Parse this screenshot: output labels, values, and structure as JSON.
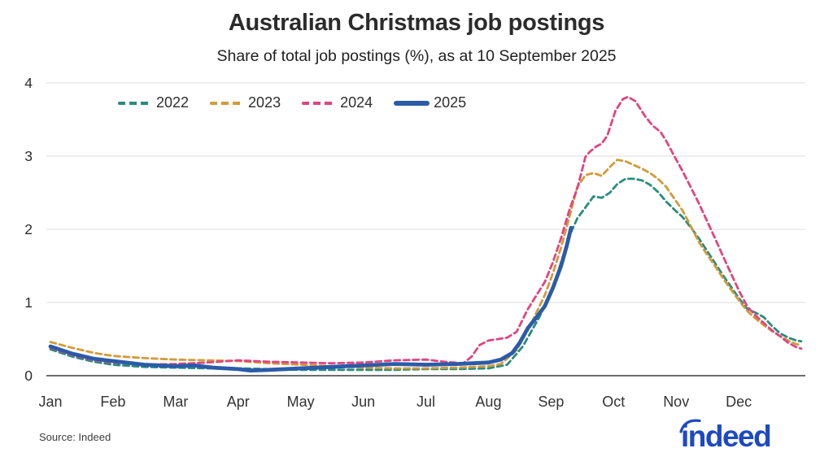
{
  "chart": {
    "title": "Australian Christmas job postings",
    "subtitle": "Share of total job postings (%), as at 10 September 2025",
    "source": "Source: Indeed"
  },
  "brand": {
    "logo_text": "indeed",
    "logo_color": "#1e49c0"
  },
  "chart_data": {
    "type": "line",
    "title": "Australian Christmas job postings",
    "subtitle": "Share of total job postings (%), as at 10 September 2025",
    "xlabel": "",
    "ylabel": "Share of total job postings (%)",
    "x_unit": "months, Jan 1 = 0 to Dec 31 = 12",
    "x_tick_labels": [
      "Jan",
      "Feb",
      "Mar",
      "Apr",
      "May",
      "Jun",
      "Jul",
      "Aug",
      "Sep",
      "Oct",
      "Nov",
      "Dec"
    ],
    "ylim": [
      0,
      4
    ],
    "y_ticks": [
      0,
      1,
      2,
      3,
      4
    ],
    "grid": "horizontal",
    "legend_position": "top-left",
    "axis_colors": {
      "gridline": "#e4e4e4",
      "baseline": "#5a5a5a",
      "tick_text": "#333333"
    },
    "series": [
      {
        "name": "2022",
        "color": "#2a8c7c",
        "style": "dashed",
        "width": 2.8,
        "points": [
          [
            0,
            0.36
          ],
          [
            0.35,
            0.26
          ],
          [
            0.7,
            0.19
          ],
          [
            1,
            0.15
          ],
          [
            1.5,
            0.12
          ],
          [
            2,
            0.11
          ],
          [
            2.5,
            0.1
          ],
          [
            3,
            0.1
          ],
          [
            3.5,
            0.09
          ],
          [
            4,
            0.08
          ],
          [
            4.5,
            0.08
          ],
          [
            5,
            0.08
          ],
          [
            5.5,
            0.08
          ],
          [
            6,
            0.09
          ],
          [
            6.5,
            0.09
          ],
          [
            7,
            0.1
          ],
          [
            7.3,
            0.15
          ],
          [
            7.55,
            0.4
          ],
          [
            7.8,
            0.78
          ],
          [
            8.03,
            1.18
          ],
          [
            8.16,
            1.55
          ],
          [
            8.3,
            1.92
          ],
          [
            8.42,
            2.15
          ],
          [
            8.55,
            2.3
          ],
          [
            8.68,
            2.45
          ],
          [
            8.81,
            2.43
          ],
          [
            8.94,
            2.5
          ],
          [
            9.06,
            2.62
          ],
          [
            9.19,
            2.69
          ],
          [
            9.32,
            2.69
          ],
          [
            9.45,
            2.67
          ],
          [
            9.58,
            2.61
          ],
          [
            9.71,
            2.51
          ],
          [
            9.84,
            2.38
          ],
          [
            9.97,
            2.27
          ],
          [
            10.1,
            2.17
          ],
          [
            10.23,
            2.03
          ],
          [
            10.36,
            1.88
          ],
          [
            10.49,
            1.71
          ],
          [
            10.62,
            1.54
          ],
          [
            10.75,
            1.37
          ],
          [
            10.88,
            1.21
          ],
          [
            11.01,
            1.05
          ],
          [
            11.14,
            0.91
          ],
          [
            11.27,
            0.86
          ],
          [
            11.4,
            0.8
          ],
          [
            11.53,
            0.68
          ],
          [
            11.66,
            0.58
          ],
          [
            11.79,
            0.52
          ],
          [
            11.92,
            0.48
          ],
          [
            12,
            0.47
          ]
        ]
      },
      {
        "name": "2023",
        "color": "#d29a3a",
        "style": "dashed",
        "width": 2.8,
        "points": [
          [
            0,
            0.46
          ],
          [
            0.35,
            0.38
          ],
          [
            0.7,
            0.31
          ],
          [
            1,
            0.27
          ],
          [
            1.5,
            0.24
          ],
          [
            2,
            0.22
          ],
          [
            2.5,
            0.21
          ],
          [
            3,
            0.2
          ],
          [
            3.5,
            0.17
          ],
          [
            4,
            0.15
          ],
          [
            4.5,
            0.13
          ],
          [
            5,
            0.11
          ],
          [
            5.5,
            0.1
          ],
          [
            6,
            0.1
          ],
          [
            6.5,
            0.11
          ],
          [
            7,
            0.13
          ],
          [
            7.2,
            0.16
          ],
          [
            7.45,
            0.35
          ],
          [
            7.63,
            0.62
          ],
          [
            7.9,
            1.1
          ],
          [
            8.03,
            1.4
          ],
          [
            8.16,
            1.75
          ],
          [
            8.29,
            2.16
          ],
          [
            8.42,
            2.58
          ],
          [
            8.55,
            2.74
          ],
          [
            8.68,
            2.77
          ],
          [
            8.81,
            2.73
          ],
          [
            8.94,
            2.85
          ],
          [
            9.06,
            2.95
          ],
          [
            9.19,
            2.93
          ],
          [
            9.32,
            2.88
          ],
          [
            9.45,
            2.83
          ],
          [
            9.58,
            2.77
          ],
          [
            9.71,
            2.69
          ],
          [
            9.84,
            2.58
          ],
          [
            9.97,
            2.42
          ],
          [
            10.1,
            2.26
          ],
          [
            10.23,
            2.05
          ],
          [
            10.36,
            1.83
          ],
          [
            10.49,
            1.66
          ],
          [
            10.62,
            1.5
          ],
          [
            10.75,
            1.33
          ],
          [
            10.88,
            1.17
          ],
          [
            11.01,
            1.02
          ],
          [
            11.14,
            0.88
          ],
          [
            11.27,
            0.78
          ],
          [
            11.4,
            0.69
          ],
          [
            11.53,
            0.61
          ],
          [
            11.66,
            0.54
          ],
          [
            11.79,
            0.48
          ],
          [
            11.92,
            0.43
          ],
          [
            12,
            0.42
          ]
        ]
      },
      {
        "name": "2024",
        "color": "#df4580",
        "style": "dashed",
        "width": 2.8,
        "points": [
          [
            0,
            0.38
          ],
          [
            0.35,
            0.28
          ],
          [
            0.7,
            0.21
          ],
          [
            1,
            0.18
          ],
          [
            1.5,
            0.15
          ],
          [
            2,
            0.16
          ],
          [
            2.5,
            0.18
          ],
          [
            3,
            0.21
          ],
          [
            3.5,
            0.19
          ],
          [
            4,
            0.18
          ],
          [
            4.5,
            0.17
          ],
          [
            5,
            0.18
          ],
          [
            5.5,
            0.21
          ],
          [
            6,
            0.22
          ],
          [
            6.3,
            0.19
          ],
          [
            6.6,
            0.17
          ],
          [
            6.73,
            0.26
          ],
          [
            6.86,
            0.42
          ],
          [
            7,
            0.48
          ],
          [
            7.15,
            0.5
          ],
          [
            7.3,
            0.52
          ],
          [
            7.45,
            0.6
          ],
          [
            7.63,
            0.91
          ],
          [
            7.9,
            1.28
          ],
          [
            8.03,
            1.55
          ],
          [
            8.16,
            1.88
          ],
          [
            8.3,
            2.28
          ],
          [
            8.42,
            2.56
          ],
          [
            8.55,
            2.99
          ],
          [
            8.62,
            3.06
          ],
          [
            8.72,
            3.13
          ],
          [
            8.81,
            3.17
          ],
          [
            8.9,
            3.28
          ],
          [
            9.03,
            3.62
          ],
          [
            9.15,
            3.78
          ],
          [
            9.23,
            3.81
          ],
          [
            9.35,
            3.75
          ],
          [
            9.5,
            3.55
          ],
          [
            9.62,
            3.42
          ],
          [
            9.75,
            3.33
          ],
          [
            9.84,
            3.21
          ],
          [
            9.97,
            3.0
          ],
          [
            10.1,
            2.8
          ],
          [
            10.23,
            2.58
          ],
          [
            10.36,
            2.36
          ],
          [
            10.49,
            2.12
          ],
          [
            10.62,
            1.88
          ],
          [
            10.75,
            1.63
          ],
          [
            10.88,
            1.39
          ],
          [
            11.01,
            1.15
          ],
          [
            11.14,
            0.94
          ],
          [
            11.27,
            0.82
          ],
          [
            11.4,
            0.72
          ],
          [
            11.53,
            0.62
          ],
          [
            11.66,
            0.54
          ],
          [
            11.79,
            0.45
          ],
          [
            11.92,
            0.39
          ],
          [
            12,
            0.37
          ]
        ]
      },
      {
        "name": "2025",
        "color": "#2b5ba9",
        "style": "solid",
        "width": 4.8,
        "note": "series ends 10 September 2025",
        "points": [
          [
            0,
            0.4
          ],
          [
            0.35,
            0.3
          ],
          [
            0.7,
            0.23
          ],
          [
            1,
            0.2
          ],
          [
            1.5,
            0.15
          ],
          [
            2,
            0.13
          ],
          [
            2.3,
            0.14
          ],
          [
            2.6,
            0.11
          ],
          [
            3,
            0.09
          ],
          [
            3.2,
            0.07
          ],
          [
            3.5,
            0.08
          ],
          [
            4,
            0.1
          ],
          [
            4.5,
            0.12
          ],
          [
            5,
            0.14
          ],
          [
            5.5,
            0.16
          ],
          [
            6,
            0.15
          ],
          [
            6.5,
            0.16
          ],
          [
            7,
            0.18
          ],
          [
            7.2,
            0.22
          ],
          [
            7.38,
            0.31
          ],
          [
            7.5,
            0.45
          ],
          [
            7.63,
            0.65
          ],
          [
            7.77,
            0.8
          ],
          [
            7.9,
            0.95
          ],
          [
            8.03,
            1.2
          ],
          [
            8.16,
            1.5
          ],
          [
            8.25,
            1.77
          ],
          [
            8.32,
            2.02
          ]
        ]
      }
    ]
  }
}
